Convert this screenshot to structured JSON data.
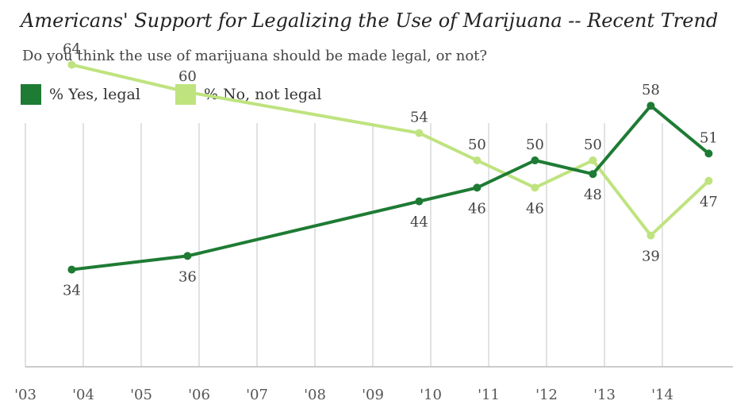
{
  "chart_data": {
    "type": "line",
    "title": "Americans' Support for Legalizing the Use of Marijuana -- Recent Trend",
    "subtitle": "Do you think the use of marijuana should be made legal, or not?",
    "x_tick_labels": [
      "'03",
      "'04",
      "'05",
      "'06",
      "'07",
      "'08",
      "'09",
      "'10",
      "'11",
      "'12",
      "'13",
      "'14"
    ],
    "xlim": [
      2003,
      2015
    ],
    "ylim": [
      20,
      70
    ],
    "grid": "vertical",
    "legend_position": "top-left",
    "series": [
      {
        "name": "% Yes, legal",
        "color": "#1e7b34",
        "points": [
          {
            "x": 2003.8,
            "y": 34,
            "label": "34"
          },
          {
            "x": 2005.8,
            "y": 36,
            "label": "36"
          },
          {
            "x": 2009.8,
            "y": 44,
            "label": "44"
          },
          {
            "x": 2010.8,
            "y": 46,
            "label": "46"
          },
          {
            "x": 2011.8,
            "y": 50,
            "label": "50"
          },
          {
            "x": 2012.8,
            "y": 48,
            "label": "48"
          },
          {
            "x": 2013.8,
            "y": 58,
            "label": "58"
          },
          {
            "x": 2014.8,
            "y": 51,
            "label": "51"
          }
        ]
      },
      {
        "name": "% No, not legal",
        "color": "#bfe37f",
        "points": [
          {
            "x": 2003.8,
            "y": 64,
            "label": "64"
          },
          {
            "x": 2005.8,
            "y": 60,
            "label": "60"
          },
          {
            "x": 2009.8,
            "y": 54,
            "label": "54"
          },
          {
            "x": 2010.8,
            "y": 50,
            "label": "50"
          },
          {
            "x": 2011.8,
            "y": 46,
            "label": "46"
          },
          {
            "x": 2012.8,
            "y": 50,
            "label": "50"
          },
          {
            "x": 2013.8,
            "y": 39,
            "label": "39"
          },
          {
            "x": 2014.8,
            "y": 47,
            "label": "47"
          }
        ]
      }
    ]
  }
}
